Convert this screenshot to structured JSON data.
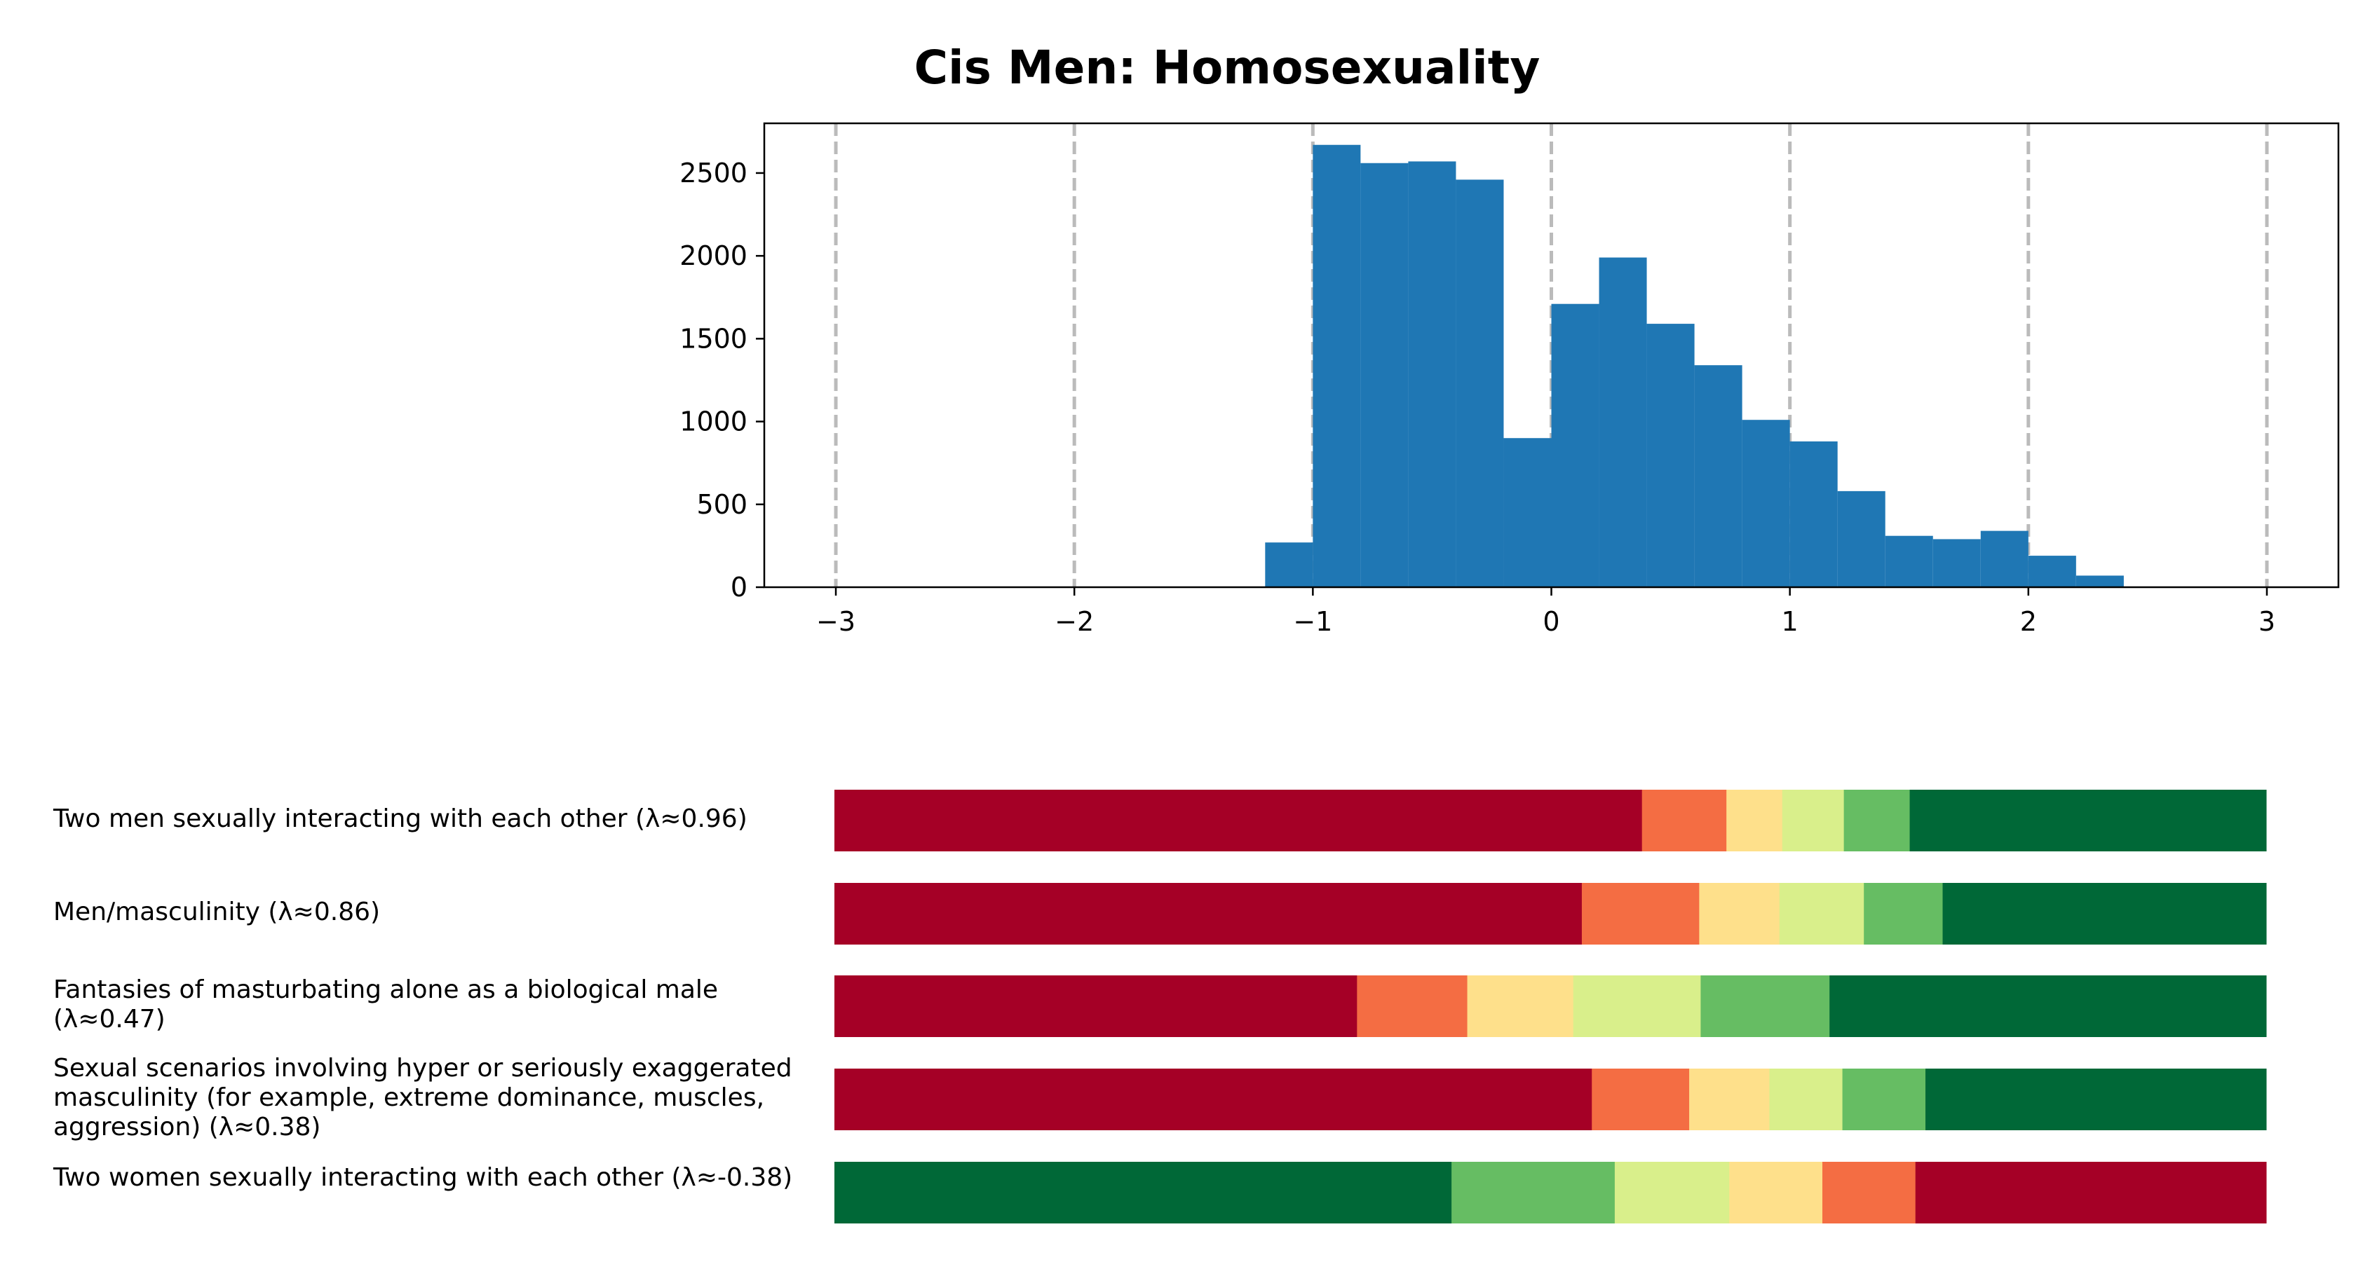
{
  "colors": {
    "hist_bar": "#1f77b4",
    "grid": "#bbbbbb",
    "scale": [
      "#a50026",
      "#f46d43",
      "#fee08b",
      "#d9ef8b",
      "#66bd63",
      "#006837"
    ]
  },
  "chart_data": [
    {
      "type": "histogram",
      "title": "Cis Men: Homosexuality",
      "xlim": [
        -3.3,
        3.3
      ],
      "ylim": [
        0,
        2800
      ],
      "xticks": [
        -3,
        -2,
        -1,
        0,
        1,
        2,
        3
      ],
      "xtick_labels": [
        "−3",
        "−2",
        "−1",
        "0",
        "1",
        "2",
        "3"
      ],
      "yticks": [
        0,
        500,
        1000,
        1500,
        2000,
        2500
      ],
      "ytick_labels": [
        "0",
        "500",
        "1000",
        "1500",
        "2000",
        "2500"
      ],
      "grid": "vertical dashed lines at integer x ticks",
      "bin_width": 0.2,
      "bins": [
        {
          "x0": -1.2,
          "count": 270
        },
        {
          "x0": -1.0,
          "count": 2670
        },
        {
          "x0": -0.8,
          "count": 2560
        },
        {
          "x0": -0.6,
          "count": 2570
        },
        {
          "x0": -0.4,
          "count": 2460
        },
        {
          "x0": -0.2,
          "count": 900
        },
        {
          "x0": 0.0,
          "count": 1710
        },
        {
          "x0": 0.2,
          "count": 1990
        },
        {
          "x0": 0.4,
          "count": 1590
        },
        {
          "x0": 0.6,
          "count": 1340
        },
        {
          "x0": 0.8,
          "count": 1010
        },
        {
          "x0": 1.0,
          "count": 880
        },
        {
          "x0": 1.2,
          "count": 580
        },
        {
          "x0": 1.4,
          "count": 310
        },
        {
          "x0": 1.6,
          "count": 290
        },
        {
          "x0": 1.8,
          "count": 340
        },
        {
          "x0": 2.0,
          "count": 190
        },
        {
          "x0": 2.2,
          "count": 70
        }
      ]
    },
    {
      "type": "stacked_bar",
      "orientation": "horizontal",
      "stack_total": 1.0,
      "items": [
        {
          "label": "Two men sexually interacting with each other (λ≈0.96)",
          "values": [
            0.564,
            0.059,
            0.039,
            0.043,
            0.046,
            0.249
          ]
        },
        {
          "label": "Men/masculinity (λ≈0.86)",
          "values": [
            0.522,
            0.082,
            0.056,
            0.059,
            0.055,
            0.226
          ]
        },
        {
          "label": "Fantasies of masturbating alone as a biological male (λ≈0.47)",
          "values": [
            0.365,
            0.077,
            0.074,
            0.089,
            0.09,
            0.305
          ]
        },
        {
          "label": "Sexual scenarios involving hyper or seriously exaggerated masculinity (for example, extreme dominance, muscles, aggression) (λ≈0.38)",
          "values": [
            0.529,
            0.068,
            0.056,
            0.051,
            0.058,
            0.238
          ]
        },
        {
          "label": "Two women sexually interacting with each other (λ≈-0.38)",
          "values": [
            0.431,
            0.114,
            0.08,
            0.065,
            0.065,
            0.245
          ],
          "color_order": "reversed"
        }
      ]
    }
  ]
}
